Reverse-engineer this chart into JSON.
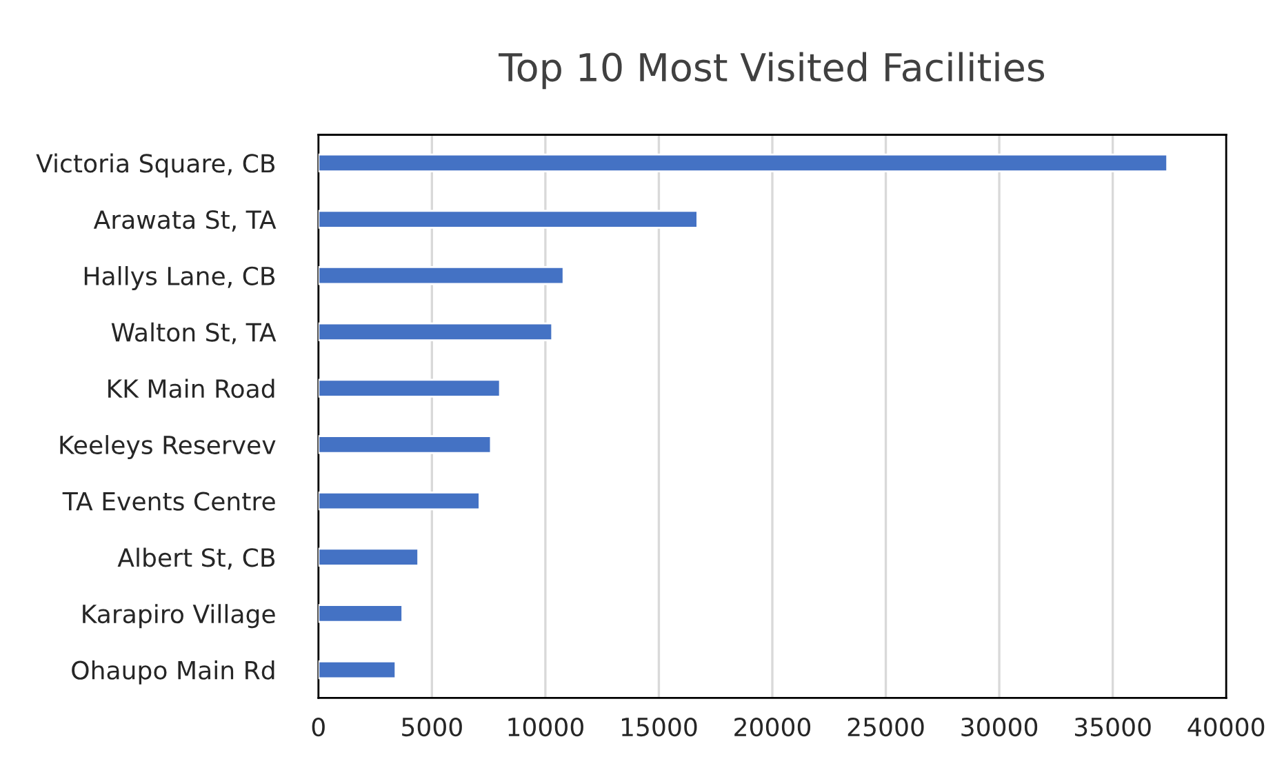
{
  "chart_data": {
    "type": "bar",
    "orientation": "horizontal",
    "title": "Top 10 Most Visited Facilities",
    "categories": [
      "Victoria Square, CB",
      "Arawata St, TA",
      "Hallys Lane, CB",
      "Walton St, TA",
      "KK Main Road",
      "Keeleys Reservev",
      "TA Events Centre",
      "Albert St, CB",
      "Karapiro Village",
      "Ohaupo Main Rd"
    ],
    "values": [
      37400,
      16700,
      10800,
      10300,
      8000,
      7600,
      7100,
      4400,
      3700,
      3400
    ],
    "color": "#4472c4",
    "xlim": [
      0,
      40000
    ],
    "xticks": [
      0,
      5000,
      10000,
      15000,
      20000,
      25000,
      30000,
      35000,
      40000
    ],
    "grid": "x"
  }
}
